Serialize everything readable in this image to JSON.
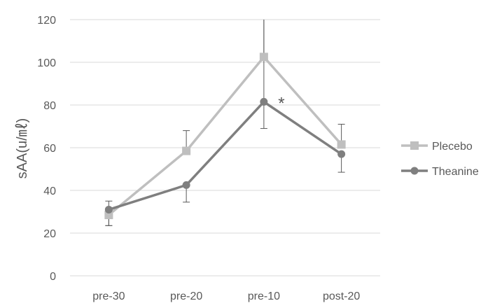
{
  "chart_data": {
    "type": "line",
    "title": "",
    "xlabel": "",
    "ylabel": "sAA(u/㎖)",
    "categories": [
      "pre-30",
      "pre-20",
      "pre-10",
      "post-20"
    ],
    "ylim": [
      0,
      120
    ],
    "yticks": [
      0,
      20,
      40,
      60,
      80,
      100,
      120
    ],
    "grid": true,
    "legend_position": "right",
    "series": [
      {
        "name": "Plecebo",
        "values": [
          28.5,
          58.5,
          102.5,
          61.5
        ],
        "error_upper": [
          30,
          68,
          120,
          71
        ],
        "error_lower": [
          23.5,
          58.5,
          102.5,
          61.5
        ],
        "color": "#bfbfbf",
        "marker": "square"
      },
      {
        "name": "Theanine",
        "values": [
          31,
          42.5,
          81.5,
          57
        ],
        "error_upper": [
          35,
          42.5,
          120,
          57
        ],
        "error_lower": [
          23.5,
          34.5,
          69,
          48.5
        ],
        "color": "#7f7f7f",
        "marker": "circle"
      }
    ],
    "annotations": [
      {
        "text": "*",
        "category": "pre-10",
        "value": 81.5
      }
    ]
  }
}
